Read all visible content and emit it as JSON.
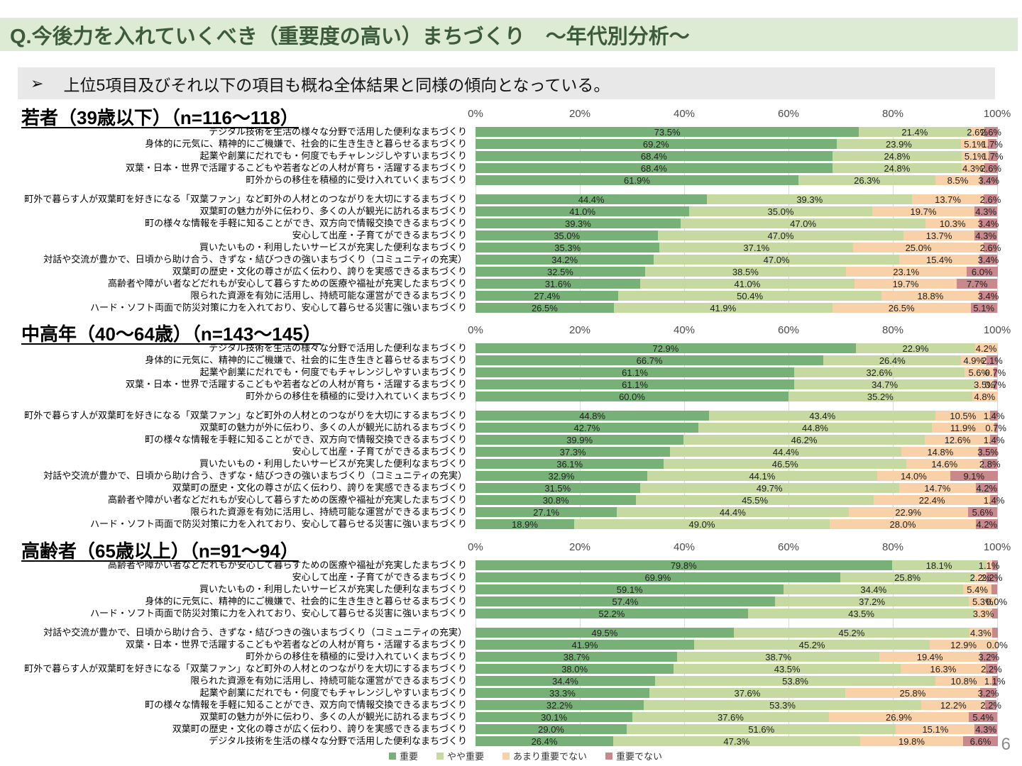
{
  "header": {
    "title": "Q.今後力を入れていくべき（重要度の高い）まちづくり　～年代別分析～"
  },
  "callout": {
    "bullet": "➢",
    "text": "上位5項目及びそれ以下の項目も概ね全体結果と同様の傾向となっている。"
  },
  "page_number": "6",
  "axis_ticks": [
    "0%",
    "20%",
    "40%",
    "60%",
    "80%",
    "100%"
  ],
  "series_colors": [
    "#78B178",
    "#C6D9A0",
    "#F8D1A8",
    "#C9888C"
  ],
  "legend": {
    "items": [
      {
        "label": "重要",
        "color": "#78B178"
      },
      {
        "label": "やや重要",
        "color": "#C6D9A0"
      },
      {
        "label": "あまり重要でない",
        "color": "#F8D1A8"
      },
      {
        "label": "重要でない",
        "color": "#C9888C"
      }
    ]
  },
  "chart_data": [
    {
      "type": "bar",
      "stacked": true,
      "orientation": "horizontal",
      "title": "若者（39歳以下）（n=116～118）",
      "xlim": [
        0,
        100
      ],
      "grid": true,
      "legend_position": "bottom",
      "series_names": [
        "重要",
        "やや重要",
        "あまり重要でない",
        "重要でない"
      ],
      "groups": [
        {
          "rows": [
            {
              "label": "デジタル技術を生活の様々な分野で活用した便利なまちづくり",
              "values": [
                73.5,
                21.4,
                2.6,
                2.6
              ],
              "value_labels": [
                "73.5%",
                "21.4%",
                "2.6%",
                "2.6%"
              ]
            },
            {
              "label": "身体的に元気に、精神的にご機嫌で、社会的に生き生きと暮らせるまちづくり",
              "values": [
                69.2,
                23.9,
                5.1,
                1.7
              ],
              "value_labels": [
                "69.2%",
                "23.9%",
                "5.1%",
                "1.7%"
              ]
            },
            {
              "label": "起業や創業にだれでも・何度でもチャレンジしやすいまちづくり",
              "values": [
                68.4,
                24.8,
                5.1,
                1.7
              ],
              "value_labels": [
                "68.4%",
                "24.8%",
                "5.1%",
                "1.7%"
              ]
            },
            {
              "label": "双葉・日本・世界で活躍するこどもや若者などの人材が育ち・活躍するまちづくり",
              "values": [
                68.4,
                24.8,
                4.3,
                2.6
              ],
              "value_labels": [
                "68.4%",
                "24.8%",
                "4.3%",
                "2.6%"
              ]
            },
            {
              "label": "町外からの移住を積極的に受け入れていくまちづくり",
              "values": [
                61.9,
                26.3,
                8.5,
                3.4
              ],
              "value_labels": [
                "61.9%",
                "26.3%",
                "8.5%",
                "3.4%"
              ]
            }
          ]
        },
        {
          "rows": [
            {
              "label": "町外で暮らす人が双葉町を好きになる「双葉ファン」など町外の人材とのつながりを大切にするまちづくり",
              "values": [
                44.4,
                39.3,
                13.7,
                2.6
              ],
              "value_labels": [
                "44.4%",
                "39.3%",
                "13.7%",
                "2.6%"
              ]
            },
            {
              "label": "双葉町の魅力が外に伝わり、多くの人が観光に訪れるまちづくり",
              "values": [
                41.0,
                35.0,
                19.7,
                4.3
              ],
              "value_labels": [
                "41.0%",
                "35.0%",
                "19.7%",
                "4.3%"
              ]
            },
            {
              "label": "町の様々な情報を手軽に知ることができ、双方向で情報交換できるまちづくり",
              "values": [
                39.3,
                47.0,
                10.3,
                3.4
              ],
              "value_labels": [
                "39.3%",
                "47.0%",
                "10.3%",
                "3.4%"
              ]
            },
            {
              "label": "安心して出産・子育てができるまちづくり",
              "values": [
                35.0,
                47.0,
                13.7,
                4.3
              ],
              "value_labels": [
                "35.0%",
                "47.0%",
                "13.7%",
                "4.3%"
              ]
            },
            {
              "label": "買いたいもの・利用したいサービスが充実した便利なまちづくり",
              "values": [
                35.3,
                37.1,
                25.0,
                2.6
              ],
              "value_labels": [
                "35.3%",
                "37.1%",
                "25.0%",
                "2.6%"
              ]
            },
            {
              "label": "対話や交流が豊かで、日頃から助け合う、きずな・結びつきの強いまちづくり（コミュニティの充実）",
              "values": [
                34.2,
                47.0,
                15.4,
                3.4
              ],
              "value_labels": [
                "34.2%",
                "47.0%",
                "15.4%",
                "3.4%"
              ]
            },
            {
              "label": "双葉町の歴史・文化の尊さが広く伝わり、誇りを実感できるまちづくり",
              "values": [
                32.5,
                38.5,
                23.1,
                6.0
              ],
              "value_labels": [
                "32.5%",
                "38.5%",
                "23.1%",
                "6.0%"
              ]
            },
            {
              "label": "高齢者や障がい者などだれもが安心して暮らすための医療や福祉が充実したまちづくり",
              "values": [
                31.6,
                41.0,
                19.7,
                7.7
              ],
              "value_labels": [
                "31.6%",
                "41.0%",
                "19.7%",
                "7.7%"
              ]
            },
            {
              "label": "限られた資源を有効に活用し、持続可能な運営ができるまちづくり",
              "values": [
                27.4,
                50.4,
                18.8,
                3.4
              ],
              "value_labels": [
                "27.4%",
                "50.4%",
                "18.8%",
                "3.4%"
              ]
            },
            {
              "label": "ハード・ソフト両面で防災対策に力を入れており、安心して暮らせる災害に強いまちづくり",
              "values": [
                26.5,
                41.9,
                26.5,
                5.1
              ],
              "value_labels": [
                "26.5%",
                "41.9%",
                "26.5%",
                "5.1%"
              ]
            }
          ]
        }
      ]
    },
    {
      "type": "bar",
      "stacked": true,
      "orientation": "horizontal",
      "title": "中高年（40～64歳）（n=143～145）",
      "xlim": [
        0,
        100
      ],
      "grid": true,
      "legend_position": "bottom",
      "series_names": [
        "重要",
        "やや重要",
        "あまり重要でない",
        "重要でない"
      ],
      "groups": [
        {
          "rows": [
            {
              "label": "デジタル技術を生活の様々な分野で活用した便利なまちづくり",
              "values": [
                72.9,
                22.9,
                4.2,
                0.0
              ],
              "value_labels": [
                "72.9%",
                "22.9%",
                "4.2%",
                ""
              ]
            },
            {
              "label": "身体的に元気に、精神的にご機嫌で、社会的に生き生きと暮らせるまちづくり",
              "values": [
                66.7,
                26.4,
                4.9,
                2.1
              ],
              "value_labels": [
                "66.7%",
                "26.4%",
                "4.9%",
                "2.1%"
              ]
            },
            {
              "label": "起業や創業にだれでも・何度でもチャレンジしやすいまちづくり",
              "values": [
                61.1,
                32.6,
                5.6,
                0.7
              ],
              "value_labels": [
                "61.1%",
                "32.6%",
                "5.6%",
                "0.7%"
              ]
            },
            {
              "label": "双葉・日本・世界で活躍するこどもや若者などの人材が育ち・活躍するまちづくり",
              "values": [
                61.1,
                34.7,
                3.5,
                0.7
              ],
              "value_labels": [
                "61.1%",
                "34.7%",
                "3.5%",
                "0.7%"
              ]
            },
            {
              "label": "町外からの移住を積極的に受け入れていくまちづくり",
              "values": [
                60.0,
                35.2,
                4.8,
                0.0
              ],
              "value_labels": [
                "60.0%",
                "35.2%",
                "4.8%",
                ""
              ]
            }
          ]
        },
        {
          "rows": [
            {
              "label": "町外で暮らす人が双葉町を好きになる「双葉ファン」など町外の人材とのつながりを大切にするまちづくり",
              "values": [
                44.8,
                43.4,
                10.5,
                1.4
              ],
              "value_labels": [
                "44.8%",
                "43.4%",
                "10.5%",
                "1.4%"
              ]
            },
            {
              "label": "双葉町の魅力が外に伝わり、多くの人が観光に訪れるまちづくり",
              "values": [
                42.7,
                44.8,
                11.9,
                0.7
              ],
              "value_labels": [
                "42.7%",
                "44.8%",
                "11.9%",
                "0.7%"
              ]
            },
            {
              "label": "町の様々な情報を手軽に知ることができ、双方向で情報交換できるまちづくり",
              "values": [
                39.9,
                46.2,
                12.6,
                1.4
              ],
              "value_labels": [
                "39.9%",
                "46.2%",
                "12.6%",
                "1.4%"
              ]
            },
            {
              "label": "安心して出産・子育てができるまちづくり",
              "values": [
                37.3,
                44.4,
                14.8,
                3.5
              ],
              "value_labels": [
                "37.3%",
                "44.4%",
                "14.8%",
                "3.5%"
              ]
            },
            {
              "label": "買いたいもの・利用したいサービスが充実した便利なまちづくり",
              "values": [
                36.1,
                46.5,
                14.6,
                2.8
              ],
              "value_labels": [
                "36.1%",
                "46.5%",
                "14.6%",
                "2.8%"
              ]
            },
            {
              "label": "対話や交流が豊かで、日頃から助け合う、きずな・結びつきの強いまちづくり（コミュニティの充実）",
              "values": [
                32.9,
                44.1,
                14.0,
                9.1
              ],
              "value_labels": [
                "32.9%",
                "44.1%",
                "14.0%",
                "9.1%"
              ]
            },
            {
              "label": "双葉町の歴史・文化の尊さが広く伝わり、誇りを実感できるまちづくり",
              "values": [
                31.5,
                49.7,
                14.7,
                4.2
              ],
              "value_labels": [
                "31.5%",
                "49.7%",
                "14.7%",
                "4.2%"
              ]
            },
            {
              "label": "高齢者や障がい者などだれもが安心して暮らすための医療や福祉が充実したまちづくり",
              "values": [
                30.8,
                45.5,
                22.4,
                1.4
              ],
              "value_labels": [
                "30.8%",
                "45.5%",
                "22.4%",
                "1.4%"
              ]
            },
            {
              "label": "限られた資源を有効に活用し、持続可能な運営ができるまちづくり",
              "values": [
                27.1,
                44.4,
                22.9,
                5.6
              ],
              "value_labels": [
                "27.1%",
                "44.4%",
                "22.9%",
                "5.6%"
              ]
            },
            {
              "label": "ハード・ソフト両面で防災対策に力を入れており、安心して暮らせる災害に強いまちづくり",
              "values": [
                18.9,
                49.0,
                28.0,
                4.2
              ],
              "value_labels": [
                "18.9%",
                "49.0%",
                "28.0%",
                "4.2%"
              ]
            }
          ]
        }
      ]
    },
    {
      "type": "bar",
      "stacked": true,
      "orientation": "horizontal",
      "title": "高齢者（65歳以上）（n=91～94）",
      "xlim": [
        0,
        100
      ],
      "grid": true,
      "legend_position": "bottom",
      "series_names": [
        "重要",
        "やや重要",
        "あまり重要でない",
        "重要でない"
      ],
      "groups": [
        {
          "rows": [
            {
              "label": "高齢者や障がい者などだれもが安心して暮らすための医療や福祉が充実したまちづくり",
              "values": [
                79.8,
                18.1,
                1.1,
                1.1
              ],
              "value_labels": [
                "79.8%",
                "18.1%",
                "1.1%",
                ""
              ]
            },
            {
              "label": "安心して出産・子育てができるまちづくり",
              "values": [
                69.9,
                25.8,
                2.2,
                2.2
              ],
              "value_labels": [
                "69.9%",
                "25.8%",
                "2.2%",
                "2.2%"
              ]
            },
            {
              "label": "買いたいもの・利用したいサービスが充実した便利なまちづくり",
              "values": [
                59.1,
                34.4,
                5.4,
                1.1
              ],
              "value_labels": [
                "59.1%",
                "34.4%",
                "5.4%",
                ""
              ]
            },
            {
              "label": "身体的に元気に、精神的にご機嫌で、社会的に生き生きと暮らせるまちづくり",
              "values": [
                57.4,
                37.2,
                5.3,
                0.0
              ],
              "value_labels": [
                "57.4%",
                "37.2%",
                "5.3%",
                "0.0%"
              ]
            },
            {
              "label": "ハード・ソフト両面で防災対策に力を入れており、安心して暮らせる災害に強いまちづくり",
              "values": [
                52.2,
                43.5,
                3.3,
                1.1
              ],
              "value_labels": [
                "52.2%",
                "43.5%",
                "3.3%",
                ""
              ]
            }
          ]
        },
        {
          "rows": [
            {
              "label": "対話や交流が豊かで、日頃から助け合う、きずな・結びつきの強いまちづくり（コミュニティの充実）",
              "values": [
                49.5,
                45.2,
                4.3,
                1.1
              ],
              "value_labels": [
                "49.5%",
                "45.2%",
                "4.3%",
                ""
              ]
            },
            {
              "label": "双葉・日本・世界で活躍するこどもや若者などの人材が育ち・活躍するまちづくり",
              "values": [
                41.9,
                45.2,
                12.9,
                0.0
              ],
              "value_labels": [
                "41.9%",
                "45.2%",
                "12.9%",
                "0.0%"
              ]
            },
            {
              "label": "町外からの移住を積極的に受け入れていくまちづくり",
              "values": [
                38.7,
                38.7,
                19.4,
                3.2
              ],
              "value_labels": [
                "38.7%",
                "38.7%",
                "19.4%",
                "3.2%"
              ]
            },
            {
              "label": "町外で暮らす人が双葉町を好きになる「双葉ファン」など町外の人材とのつながりを大切にするまちづくり",
              "values": [
                38.0,
                43.5,
                16.3,
                2.2
              ],
              "value_labels": [
                "38.0%",
                "43.5%",
                "16.3%",
                "2.2%"
              ]
            },
            {
              "label": "限られた資源を有効に活用し、持続可能な運営ができるまちづくり",
              "values": [
                34.4,
                53.8,
                10.8,
                1.1
              ],
              "value_labels": [
                "34.4%",
                "53.8%",
                "10.8%",
                "1.1%"
              ]
            },
            {
              "label": "起業や創業にだれでも・何度でもチャレンジしやすいまちづくり",
              "values": [
                33.3,
                37.6,
                25.8,
                3.2
              ],
              "value_labels": [
                "33.3%",
                "37.6%",
                "25.8%",
                "3.2%"
              ]
            },
            {
              "label": "町の様々な情報を手軽に知ることができ、双方向で情報交換できるまちづくり",
              "values": [
                32.2,
                53.3,
                12.2,
                2.2
              ],
              "value_labels": [
                "32.2%",
                "53.3%",
                "12.2%",
                "2.2%"
              ]
            },
            {
              "label": "双葉町の魅力が外に伝わり、多くの人が観光に訪れるまちづくり",
              "values": [
                30.1,
                37.6,
                26.9,
                5.4
              ],
              "value_labels": [
                "30.1%",
                "37.6%",
                "26.9%",
                "5.4%"
              ]
            },
            {
              "label": "双葉町の歴史・文化の尊さが広く伝わり、誇りを実感できるまちづくり",
              "values": [
                29.0,
                51.6,
                15.1,
                4.3
              ],
              "value_labels": [
                "29.0%",
                "51.6%",
                "15.1%",
                "4.3%"
              ]
            },
            {
              "label": "デジタル技術を生活の様々な分野で活用した便利なまちづくり",
              "values": [
                26.4,
                47.3,
                19.8,
                6.6
              ],
              "value_labels": [
                "26.4%",
                "47.3%",
                "19.8%",
                "6.6%"
              ]
            }
          ]
        }
      ]
    }
  ]
}
